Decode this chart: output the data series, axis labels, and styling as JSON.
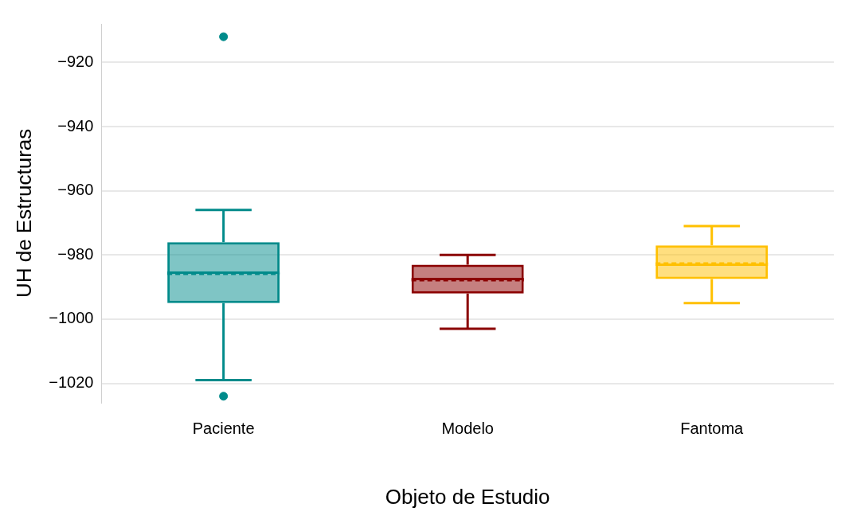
{
  "chart_data": {
    "type": "box",
    "xlabel": "Objeto de Estudio",
    "ylabel": "UH de Estructuras",
    "categories": [
      "Paciente",
      "Modelo",
      "Fantoma"
    ],
    "colors": [
      "#008b8b",
      "#8b0000",
      "#ffc000"
    ],
    "boxes": [
      {
        "low": -1019,
        "q1": -995,
        "median": -985.5,
        "q3": -976,
        "high": -966,
        "mean": -986,
        "outliers": [
          -912,
          -1024
        ]
      },
      {
        "low": -1003,
        "q1": -992,
        "median": -987.5,
        "q3": -983,
        "high": -980,
        "mean": -988
      },
      {
        "low": -995,
        "q1": -987.5,
        "median": -983,
        "q3": -977,
        "high": -971,
        "mean": -982.5
      }
    ],
    "ylim": [
      -1026,
      -908
    ],
    "yticks": [
      -1020,
      -1000,
      -980,
      -960,
      -940,
      -920
    ],
    "grid": "y",
    "legend": false
  }
}
